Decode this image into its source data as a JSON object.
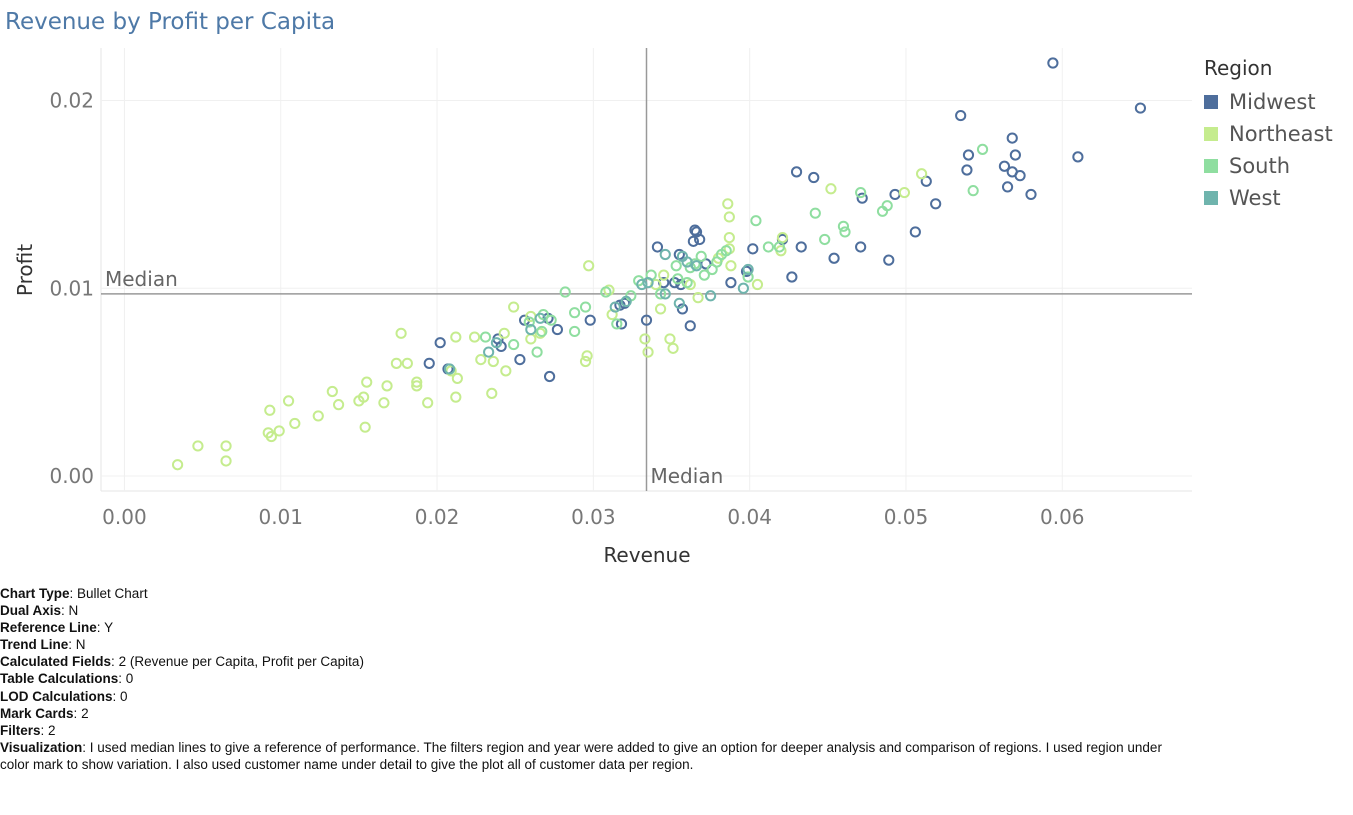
{
  "title": "Revenue by Profit per Capita",
  "legend": {
    "title": "Region",
    "items": [
      {
        "label": "Midwest",
        "color": "#4e6e9c"
      },
      {
        "label": "Northeast",
        "color": "#c5ec8e"
      },
      {
        "label": "South",
        "color": "#8fdea0"
      },
      {
        "label": "West",
        "color": "#6fb4ad"
      }
    ]
  },
  "chart_data": {
    "type": "scatter",
    "title": "Revenue by Profit per Capita",
    "xlabel": "Revenue",
    "ylabel": "Profit",
    "xlim": [
      -0.0015,
      0.0683
    ],
    "ylim": [
      -0.0008,
      0.0228
    ],
    "xticks": [
      "0.00",
      "0.01",
      "0.02",
      "0.03",
      "0.04",
      "0.05",
      "0.06"
    ],
    "yticks": [
      "0.00",
      "0.01",
      "0.02"
    ],
    "grid": true,
    "legend_position": "top-right",
    "reference_lines": [
      {
        "axis": "x",
        "value": 0.0334,
        "label": "Median"
      },
      {
        "axis": "y",
        "value": 0.0097,
        "label": "Median"
      }
    ],
    "series": [
      {
        "name": "Midwest",
        "color": "#4e6e9c",
        "points": [
          [
            0.0594,
            0.022
          ],
          [
            0.065,
            0.0196
          ],
          [
            0.0535,
            0.0192
          ],
          [
            0.0568,
            0.018
          ],
          [
            0.061,
            0.017
          ],
          [
            0.054,
            0.0171
          ],
          [
            0.057,
            0.0171
          ],
          [
            0.0563,
            0.0165
          ],
          [
            0.0568,
            0.0162
          ],
          [
            0.0539,
            0.0163
          ],
          [
            0.0573,
            0.016
          ],
          [
            0.043,
            0.0162
          ],
          [
            0.0441,
            0.0159
          ],
          [
            0.0513,
            0.0157
          ],
          [
            0.0565,
            0.0154
          ],
          [
            0.058,
            0.015
          ],
          [
            0.0493,
            0.015
          ],
          [
            0.0472,
            0.0148
          ],
          [
            0.0519,
            0.0145
          ],
          [
            0.0365,
            0.0131
          ],
          [
            0.0366,
            0.013
          ],
          [
            0.0506,
            0.013
          ],
          [
            0.0364,
            0.0125
          ],
          [
            0.0368,
            0.0126
          ],
          [
            0.0421,
            0.0126
          ],
          [
            0.0341,
            0.0122
          ],
          [
            0.0433,
            0.0122
          ],
          [
            0.0471,
            0.0122
          ],
          [
            0.0402,
            0.0121
          ],
          [
            0.0355,
            0.0118
          ],
          [
            0.0454,
            0.0116
          ],
          [
            0.0489,
            0.0115
          ],
          [
            0.0372,
            0.0113
          ],
          [
            0.0398,
            0.0109
          ],
          [
            0.0427,
            0.0106
          ],
          [
            0.0345,
            0.0103
          ],
          [
            0.0352,
            0.0103
          ],
          [
            0.0388,
            0.0103
          ],
          [
            0.0356,
            0.0102
          ],
          [
            0.0357,
            0.0089
          ],
          [
            0.032,
            0.0092
          ],
          [
            0.0317,
            0.0091
          ],
          [
            0.0256,
            0.0083
          ],
          [
            0.0271,
            0.0084
          ],
          [
            0.0298,
            0.0083
          ],
          [
            0.0334,
            0.0083
          ],
          [
            0.0318,
            0.0081
          ],
          [
            0.0362,
            0.008
          ],
          [
            0.0277,
            0.0078
          ],
          [
            0.0239,
            0.0073
          ],
          [
            0.0202,
            0.0071
          ],
          [
            0.0241,
            0.0069
          ],
          [
            0.0195,
            0.006
          ],
          [
            0.0253,
            0.0062
          ],
          [
            0.0207,
            0.0057
          ],
          [
            0.0272,
            0.0053
          ]
        ]
      },
      {
        "name": "Northeast",
        "color": "#c5ec8e",
        "points": [
          [
            0.051,
            0.0161
          ],
          [
            0.0452,
            0.0153
          ],
          [
            0.0499,
            0.0151
          ],
          [
            0.0386,
            0.0145
          ],
          [
            0.0387,
            0.0138
          ],
          [
            0.0387,
            0.0127
          ],
          [
            0.0421,
            0.0127
          ],
          [
            0.0387,
            0.0121
          ],
          [
            0.042,
            0.012
          ],
          [
            0.0297,
            0.0112
          ],
          [
            0.0388,
            0.0112
          ],
          [
            0.0345,
            0.0107
          ],
          [
            0.0405,
            0.0102
          ],
          [
            0.034,
            0.0102
          ],
          [
            0.031,
            0.0099
          ],
          [
            0.0367,
            0.0095
          ],
          [
            0.0249,
            0.009
          ],
          [
            0.0343,
            0.0089
          ],
          [
            0.026,
            0.0085
          ],
          [
            0.0243,
            0.0076
          ],
          [
            0.0177,
            0.0076
          ],
          [
            0.0224,
            0.0074
          ],
          [
            0.0212,
            0.0074
          ],
          [
            0.0266,
            0.0076
          ],
          [
            0.026,
            0.0073
          ],
          [
            0.0333,
            0.0073
          ],
          [
            0.0349,
            0.0073
          ],
          [
            0.0351,
            0.0068
          ],
          [
            0.0335,
            0.0066
          ],
          [
            0.0296,
            0.0064
          ],
          [
            0.0295,
            0.0061
          ],
          [
            0.0174,
            0.006
          ],
          [
            0.0181,
            0.006
          ],
          [
            0.0228,
            0.0062
          ],
          [
            0.0236,
            0.0061
          ],
          [
            0.0244,
            0.0056
          ],
          [
            0.0209,
            0.0056
          ],
          [
            0.0213,
            0.0052
          ],
          [
            0.0155,
            0.005
          ],
          [
            0.0187,
            0.005
          ],
          [
            0.0187,
            0.0048
          ],
          [
            0.0168,
            0.0048
          ],
          [
            0.0133,
            0.0045
          ],
          [
            0.0235,
            0.0044
          ],
          [
            0.0212,
            0.0042
          ],
          [
            0.0153,
            0.0042
          ],
          [
            0.015,
            0.004
          ],
          [
            0.0194,
            0.0039
          ],
          [
            0.0166,
            0.0039
          ],
          [
            0.0105,
            0.004
          ],
          [
            0.0137,
            0.0038
          ],
          [
            0.0093,
            0.0035
          ],
          [
            0.0124,
            0.0032
          ],
          [
            0.0109,
            0.0028
          ],
          [
            0.0154,
            0.0026
          ],
          [
            0.0099,
            0.0024
          ],
          [
            0.0092,
            0.0023
          ],
          [
            0.0094,
            0.0021
          ],
          [
            0.0047,
            0.0016
          ],
          [
            0.0065,
            0.0016
          ],
          [
            0.0065,
            0.0008
          ],
          [
            0.0034,
            0.0006
          ],
          [
            0.0362,
            0.0102
          ],
          [
            0.038,
            0.0116
          ],
          [
            0.0312,
            0.0086
          ]
        ]
      },
      {
        "name": "South",
        "color": "#8fdea0",
        "points": [
          [
            0.0549,
            0.0174
          ],
          [
            0.0543,
            0.0152
          ],
          [
            0.0471,
            0.0151
          ],
          [
            0.0488,
            0.0144
          ],
          [
            0.0485,
            0.0141
          ],
          [
            0.0442,
            0.014
          ],
          [
            0.0404,
            0.0136
          ],
          [
            0.046,
            0.0133
          ],
          [
            0.0461,
            0.013
          ],
          [
            0.0448,
            0.0126
          ],
          [
            0.0412,
            0.0122
          ],
          [
            0.0419,
            0.0122
          ],
          [
            0.0385,
            0.012
          ],
          [
            0.0382,
            0.0118
          ],
          [
            0.0369,
            0.0117
          ],
          [
            0.0379,
            0.0114
          ],
          [
            0.0365,
            0.0113
          ],
          [
            0.0353,
            0.0112
          ],
          [
            0.0362,
            0.0111
          ],
          [
            0.0376,
            0.011
          ],
          [
            0.0371,
            0.0107
          ],
          [
            0.0337,
            0.0107
          ],
          [
            0.0399,
            0.0106
          ],
          [
            0.0354,
            0.0105
          ],
          [
            0.0329,
            0.0104
          ],
          [
            0.036,
            0.0103
          ],
          [
            0.0282,
            0.0098
          ],
          [
            0.0308,
            0.0098
          ],
          [
            0.0343,
            0.0097
          ],
          [
            0.0324,
            0.0096
          ],
          [
            0.0295,
            0.009
          ],
          [
            0.0288,
            0.0087
          ],
          [
            0.0268,
            0.0086
          ],
          [
            0.0273,
            0.0083
          ],
          [
            0.0259,
            0.0082
          ],
          [
            0.0315,
            0.0081
          ],
          [
            0.0267,
            0.0077
          ],
          [
            0.0288,
            0.0077
          ],
          [
            0.0231,
            0.0074
          ],
          [
            0.0249,
            0.007
          ],
          [
            0.0264,
            0.0066
          ]
        ]
      },
      {
        "name": "West",
        "color": "#6fb4ad",
        "points": [
          [
            0.0357,
            0.0117
          ],
          [
            0.0346,
            0.0118
          ],
          [
            0.036,
            0.0114
          ],
          [
            0.0366,
            0.0112
          ],
          [
            0.0375,
            0.0096
          ],
          [
            0.0331,
            0.0102
          ],
          [
            0.0335,
            0.0103
          ],
          [
            0.0346,
            0.0097
          ],
          [
            0.0396,
            0.01
          ],
          [
            0.0399,
            0.011
          ],
          [
            0.0355,
            0.0092
          ],
          [
            0.0314,
            0.009
          ],
          [
            0.0321,
            0.0093
          ],
          [
            0.0238,
            0.0071
          ],
          [
            0.0233,
            0.0066
          ],
          [
            0.0208,
            0.0057
          ],
          [
            0.026,
            0.0078
          ],
          [
            0.0266,
            0.0084
          ]
        ]
      }
    ]
  },
  "notes": [
    {
      "key": "Chart Type",
      "value": "Bullet Chart"
    },
    {
      "key": "Dual Axis",
      "value": "N"
    },
    {
      "key": "Reference Line",
      "value": "Y"
    },
    {
      "key": "Trend Line",
      "value": "N"
    },
    {
      "key": "Calculated Fields",
      "value": "2 (Revenue per Capita, Profit per Capita)"
    },
    {
      "key": "Table Calculations",
      "value": "0"
    },
    {
      "key": "LOD Calculations",
      "value": "0"
    },
    {
      "key": "Mark Cards",
      "value": "2"
    },
    {
      "key": "Filters",
      "value": "2"
    },
    {
      "key": "Visualization",
      "value": "I used median lines to give a reference of performance. The filters region and year were added to give an option for deeper analysis and comparison of regions. I used region under color mark to show variation. I also used customer name under detail to give the plot all of customer data per region."
    }
  ]
}
